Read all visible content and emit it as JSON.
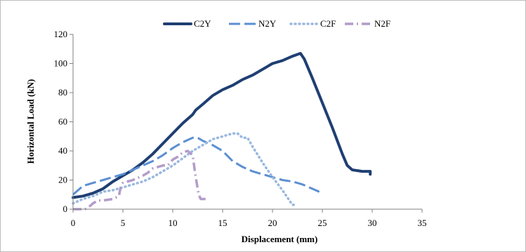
{
  "chart_data": {
    "type": "line",
    "title": "",
    "xlabel": "Displacement  (mm)",
    "ylabel": "Horizontal Load (kN)",
    "xlim": [
      0,
      35
    ],
    "ylim": [
      0,
      120
    ],
    "x_ticks": [
      0,
      5,
      10,
      15,
      20,
      25,
      30,
      35
    ],
    "y_ticks": [
      0,
      20,
      40,
      60,
      80,
      100,
      120
    ],
    "grid": false,
    "legend_position": "top",
    "series": [
      {
        "name": "C2Y",
        "color": "#1f3f73",
        "style": "solid",
        "points": [
          [
            0,
            8
          ],
          [
            1,
            9
          ],
          [
            2,
            11
          ],
          [
            3,
            14
          ],
          [
            4,
            19
          ],
          [
            5,
            23
          ],
          [
            6,
            27
          ],
          [
            7,
            32
          ],
          [
            8,
            38
          ],
          [
            9,
            45
          ],
          [
            10,
            52
          ],
          [
            11,
            59
          ],
          [
            12,
            65
          ],
          [
            12.3,
            68
          ],
          [
            13,
            72
          ],
          [
            14,
            78
          ],
          [
            15,
            82
          ],
          [
            16,
            85
          ],
          [
            17,
            89
          ],
          [
            18,
            92
          ],
          [
            19,
            96
          ],
          [
            20,
            100
          ],
          [
            21,
            102
          ],
          [
            22,
            105
          ],
          [
            22.8,
            107
          ],
          [
            23.2,
            103
          ],
          [
            24,
            90
          ],
          [
            25,
            73
          ],
          [
            26,
            56
          ],
          [
            27,
            38
          ],
          [
            27.5,
            30
          ],
          [
            28,
            27
          ],
          [
            29,
            26
          ],
          [
            29.8,
            26
          ],
          [
            29.8,
            24
          ]
        ]
      },
      {
        "name": "N2Y",
        "color": "#5b8fd1",
        "style": "longdash",
        "points": [
          [
            0,
            10
          ],
          [
            0.5,
            13
          ],
          [
            1,
            16
          ],
          [
            2,
            18
          ],
          [
            3,
            20
          ],
          [
            4,
            22
          ],
          [
            5,
            24
          ],
          [
            6,
            27
          ],
          [
            7,
            30
          ],
          [
            8,
            33
          ],
          [
            9,
            37
          ],
          [
            10,
            42
          ],
          [
            11,
            46
          ],
          [
            12,
            49
          ],
          [
            12.5,
            49
          ],
          [
            13,
            47
          ],
          [
            14,
            44
          ],
          [
            15,
            40
          ],
          [
            16,
            33
          ],
          [
            17,
            29
          ],
          [
            18,
            26
          ],
          [
            19,
            24
          ],
          [
            20,
            22
          ],
          [
            21,
            20
          ],
          [
            22,
            19
          ],
          [
            23,
            17
          ],
          [
            24,
            14
          ],
          [
            25,
            11
          ]
        ]
      },
      {
        "name": "C2F",
        "color": "#9ab8df",
        "style": "dotted",
        "points": [
          [
            0,
            4
          ],
          [
            1,
            7
          ],
          [
            2,
            9
          ],
          [
            3,
            12
          ],
          [
            4,
            13
          ],
          [
            5,
            15
          ],
          [
            6,
            17
          ],
          [
            7,
            19
          ],
          [
            8,
            22
          ],
          [
            9,
            26
          ],
          [
            10,
            30
          ],
          [
            11,
            35
          ],
          [
            12,
            40
          ],
          [
            13,
            44
          ],
          [
            14,
            48
          ],
          [
            15,
            50
          ],
          [
            16,
            52
          ],
          [
            16.5,
            52
          ],
          [
            17,
            49
          ],
          [
            17.5,
            49
          ],
          [
            18,
            43
          ],
          [
            19,
            32
          ],
          [
            20,
            22
          ],
          [
            21,
            13
          ],
          [
            21.7,
            6
          ],
          [
            22,
            3
          ],
          [
            22.4,
            3
          ]
        ]
      },
      {
        "name": "N2F",
        "color": "#b39cc9",
        "style": "dashdot",
        "points": [
          [
            0,
            0
          ],
          [
            1.2,
            0
          ],
          [
            1.5,
            1
          ],
          [
            2,
            4
          ],
          [
            2.5,
            6
          ],
          [
            3,
            6
          ],
          [
            4,
            7
          ],
          [
            4.6,
            9
          ],
          [
            4.8,
            16
          ],
          [
            5,
            18
          ],
          [
            6,
            20
          ],
          [
            7,
            23
          ],
          [
            7.5,
            25
          ],
          [
            8,
            28
          ],
          [
            9,
            30
          ],
          [
            9.5,
            30
          ],
          [
            10,
            34
          ],
          [
            10.5,
            36
          ],
          [
            11,
            39
          ],
          [
            11.5,
            40
          ],
          [
            12,
            37
          ],
          [
            12.2,
            27
          ],
          [
            12.4,
            18
          ],
          [
            12.6,
            10
          ],
          [
            12.8,
            7
          ],
          [
            13.5,
            7
          ]
        ]
      }
    ]
  }
}
